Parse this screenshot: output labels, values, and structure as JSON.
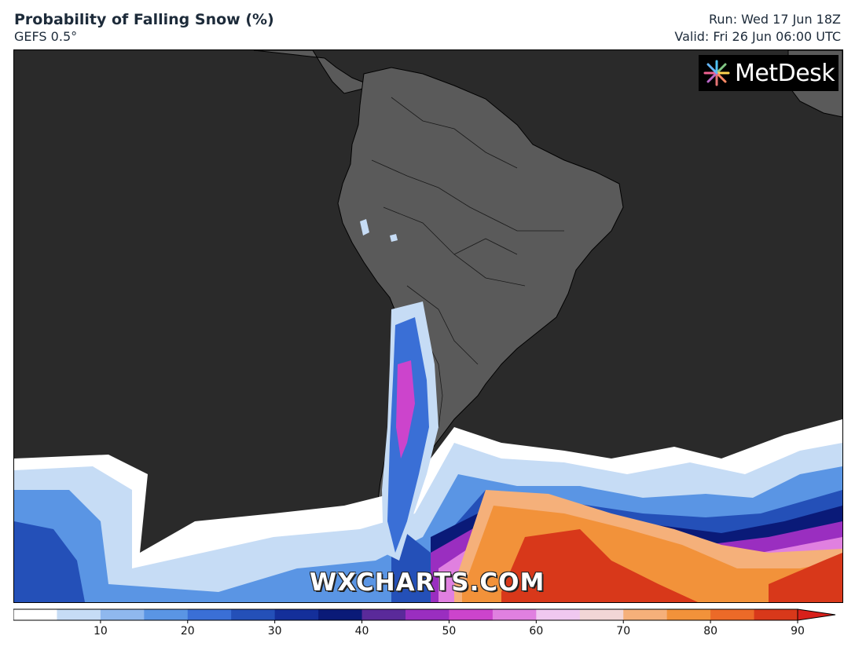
{
  "header": {
    "title": "Probability of Falling Snow (%)",
    "model": "GEFS 0.5°",
    "run": "Run: Wed 17 Jun 18Z",
    "valid": "Valid: Fri 26 Jun 06:00 UTC"
  },
  "branding": {
    "logo_text": "MetDesk",
    "watermark": "WXCHARTS.COM"
  },
  "legend": {
    "colors": [
      "#ffffff",
      "#c6dcf5",
      "#8fb8ee",
      "#5a95e4",
      "#3a6fd6",
      "#2450b8",
      "#142f9a",
      "#0a1a78",
      "#5a2a9a",
      "#9a2ec0",
      "#cc44cc",
      "#e080e0",
      "#f0c8f0",
      "#f2d6d6",
      "#f5b07a",
      "#f2923a",
      "#ec6a28",
      "#d8381a"
    ],
    "tick_labels": [
      "10",
      "20",
      "30",
      "40",
      "50",
      "60",
      "70",
      "80",
      "90"
    ],
    "overflow_color": "#d8201a"
  }
}
